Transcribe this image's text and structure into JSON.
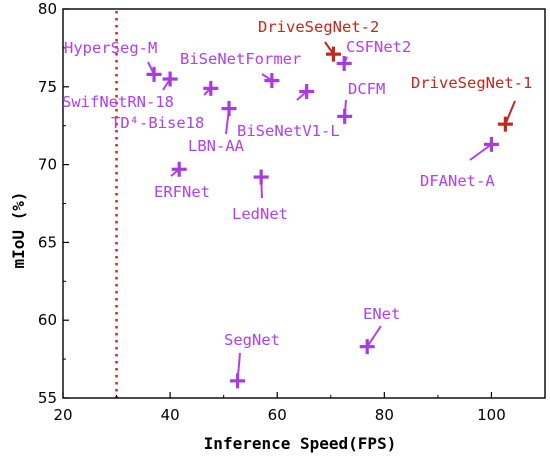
{
  "chart_data": {
    "type": "scatter",
    "xlabel": "Inference Speed(FPS)",
    "ylabel": "mIoU (%)",
    "xlim": [
      20,
      110
    ],
    "ylim": [
      55,
      80
    ],
    "xticks": [
      20,
      40,
      60,
      80,
      100
    ],
    "yticks": [
      55,
      60,
      65,
      70,
      75,
      80
    ],
    "grid": false,
    "reference_line": {
      "x": 30,
      "color": "#c0392b",
      "style": "dotted"
    },
    "colors": {
      "method": "#a93ae0",
      "method_label": "#b040f0",
      "highlight": "#c8241c",
      "highlight_label": "#c8241c"
    },
    "points": [
      {
        "name": "HyperSeg-M",
        "x": 37,
        "y": 75.8,
        "highlight": false
      },
      {
        "name": "SwifNetRN-18",
        "x": 40,
        "y": 75.5,
        "highlight": false
      },
      {
        "name": "TD⁴-Bise18",
        "x": 47.6,
        "y": 74.9,
        "highlight": false
      },
      {
        "name": "BiSeNetFormer",
        "x": 59,
        "y": 75.4,
        "highlight": false
      },
      {
        "name": "LBN-AA",
        "x": 51,
        "y": 73.6,
        "highlight": false
      },
      {
        "name": "BiSeNetV1-L",
        "x": 65.5,
        "y": 74.7,
        "highlight": false
      },
      {
        "name": "ERFNet",
        "x": 41.7,
        "y": 69.7,
        "highlight": false
      },
      {
        "name": "LedNet",
        "x": 57,
        "y": 69.2,
        "highlight": false
      },
      {
        "name": "CSFNet2",
        "x": 72.5,
        "y": 76.5,
        "highlight": false
      },
      {
        "name": "DriveSegNet-2",
        "x": 70.5,
        "y": 77.1,
        "highlight": true
      },
      {
        "name": "DCFM",
        "x": 72.6,
        "y": 73.1,
        "highlight": false
      },
      {
        "name": "DriveSegNet-1",
        "x": 102.6,
        "y": 72.6,
        "highlight": true
      },
      {
        "name": "DFANet-A",
        "x": 100,
        "y": 71.3,
        "highlight": false
      },
      {
        "name": "ENet",
        "x": 76.8,
        "y": 58.3,
        "highlight": false
      },
      {
        "name": "SegNet",
        "x": 52.6,
        "y": 56.1,
        "highlight": false
      }
    ]
  }
}
